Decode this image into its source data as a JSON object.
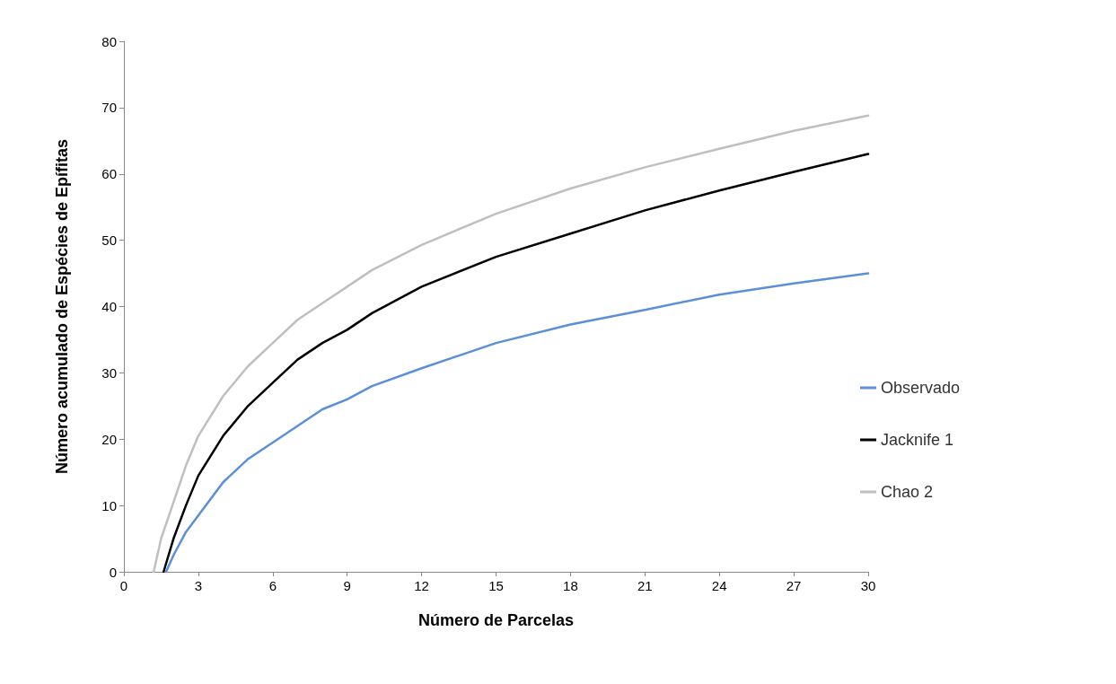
{
  "chart_data": {
    "type": "line",
    "xlabel": "Número de Parcelas",
    "ylabel": "Número acumulado de Espécies de Epífitas",
    "xlim": [
      0,
      30
    ],
    "xticks": [
      0,
      3,
      6,
      9,
      12,
      15,
      18,
      21,
      24,
      27,
      30
    ],
    "ylim": [
      0,
      80
    ],
    "yticks": [
      0,
      10,
      20,
      30,
      40,
      50,
      60,
      70,
      80
    ],
    "grid": false,
    "legend": "right",
    "marker": "none",
    "line_style": "solid",
    "series": [
      {
        "name": "Observado",
        "color": "#5b8fd8",
        "x": [
          1.7,
          2,
          2.5,
          3,
          4,
          5,
          6,
          7,
          8,
          9,
          10,
          12,
          15,
          18,
          21,
          24,
          27,
          30
        ],
        "values": [
          0,
          2.5,
          6,
          8.5,
          13.5,
          17,
          19.5,
          22,
          24.5,
          26,
          28,
          30.7,
          34.5,
          37.3,
          39.5,
          41.8,
          43.5,
          45
        ]
      },
      {
        "name": "Jacknife 1",
        "color": "#000000",
        "x": [
          1.6,
          2,
          2.5,
          3,
          4,
          5,
          6,
          7,
          8,
          9,
          10,
          12,
          15,
          18,
          21,
          24,
          27,
          30
        ],
        "values": [
          0,
          5,
          10,
          14.5,
          20.5,
          25,
          28.5,
          32,
          34.5,
          36.5,
          39,
          43,
          47.5,
          51,
          54.5,
          57.5,
          60.3,
          63
        ]
      },
      {
        "name": "Chao 2",
        "color": "#bfbfbf",
        "x": [
          1.2,
          1.5,
          2,
          2.5,
          3,
          4,
          5,
          6,
          7,
          8,
          9,
          10,
          12,
          15,
          18,
          21,
          24,
          27,
          30
        ],
        "values": [
          0,
          5,
          10.5,
          16,
          20.5,
          26.5,
          31,
          34.5,
          38,
          40.5,
          43,
          45.5,
          49.3,
          54,
          57.8,
          61,
          63.8,
          66.5,
          68.8
        ]
      }
    ]
  }
}
